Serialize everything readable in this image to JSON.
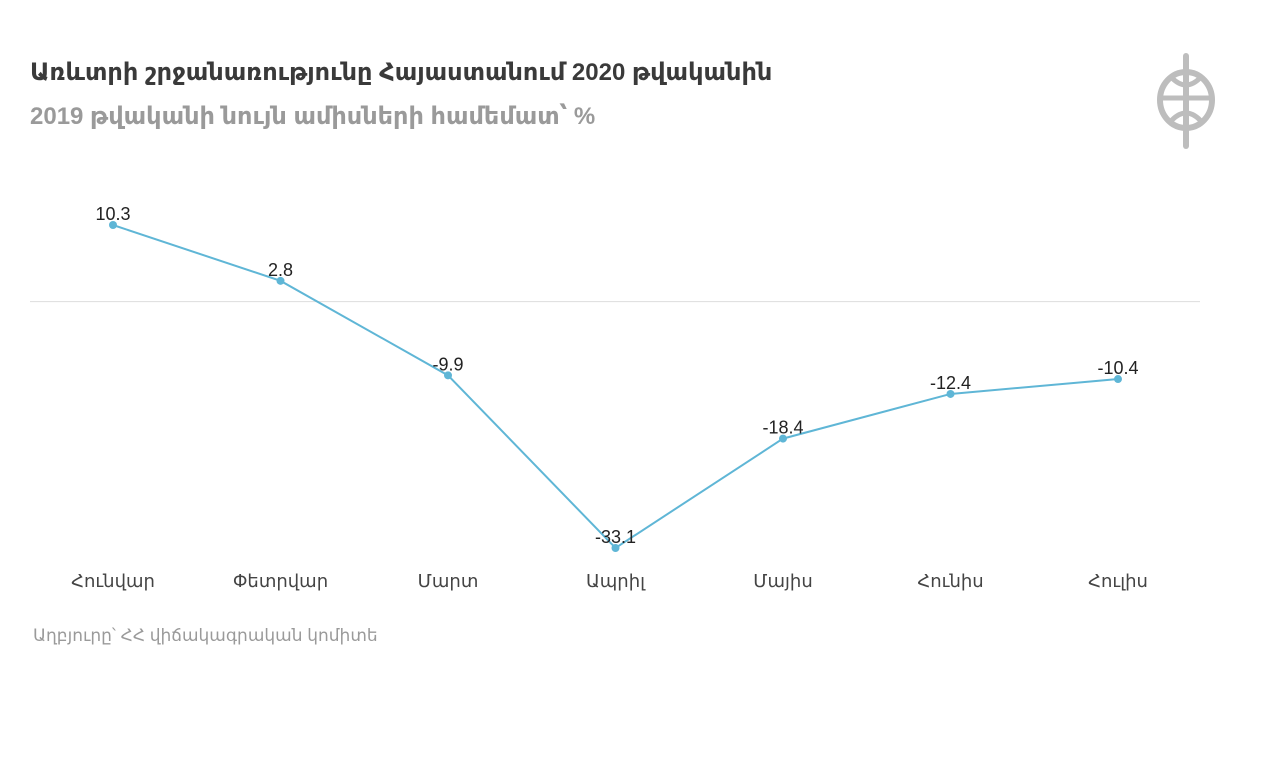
{
  "header": {
    "title": "Առևտրի շրջանառությունը Հայաստանում 2020 թվականին",
    "subtitle": "2019 թվականի նույն ամիսների համեմատ՝ %"
  },
  "footer": {
    "source": "Աղբյուրը՝ ՀՀ վիճակագրական կոմիտե"
  },
  "colors": {
    "line": "#5fb6d6",
    "zero_line": "#dddddd",
    "title": "#3a3a3a",
    "muted": "#9a9a9a",
    "logo": "#bdbdbd"
  },
  "logo": {
    "icon": "circle-trident-logo-icon"
  },
  "chart_data": {
    "type": "line",
    "categories": [
      "Հունվար",
      "Փետրվար",
      "Մարտ",
      "Ապրիլ",
      "Մայիս",
      "Հունիս",
      "Հուլիս"
    ],
    "series": [
      {
        "values": [
          10.3,
          2.8,
          -9.9,
          -33.1,
          -18.4,
          -12.4,
          -10.4
        ]
      }
    ],
    "labels": [
      "10.3",
      "2.8",
      "-9.9",
      "-33.1",
      "-18.4",
      "-12.4",
      "-10.4"
    ],
    "title": "Առևտրի շրջանառությունը Հայաստանում 2020 թվականին",
    "subtitle": "2019 թվականի նույն ամիսների համեմատ՝ %",
    "xlabel": "",
    "ylabel": "",
    "ylim": [
      -33.1,
      10.3
    ],
    "zero_line": true,
    "grid": false,
    "legend": "none"
  }
}
